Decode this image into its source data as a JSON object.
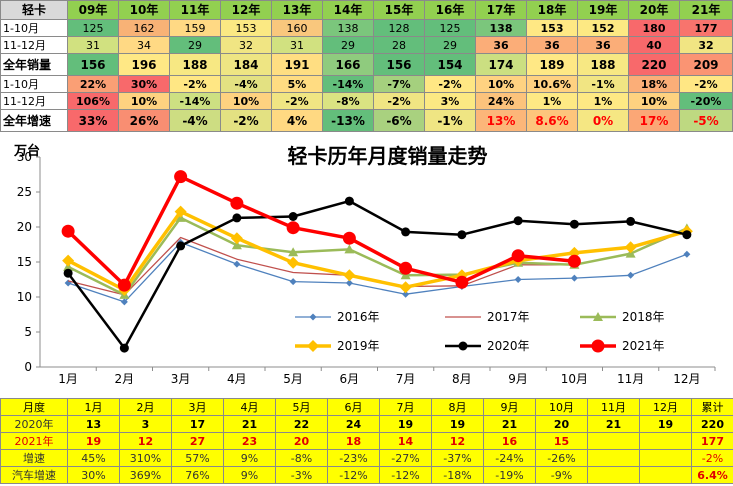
{
  "summary_table": {
    "header": [
      "轻卡",
      "09年",
      "10年",
      "11年",
      "12年",
      "13年",
      "14年",
      "15年",
      "16年",
      "17年",
      "18年",
      "19年",
      "20年",
      "21年"
    ],
    "header_colors": [
      "#d9d9d9",
      "#92d050",
      "#92d050",
      "#92d050",
      "#92d050",
      "#92d050",
      "#92d050",
      "#92d050",
      "#92d050",
      "#92d050",
      "#92d050",
      "#92d050",
      "#92d050",
      "#92d050"
    ],
    "rows": [
      {
        "label": "1-10月",
        "cells": [
          "125",
          "162",
          "159",
          "153",
          "160",
          "138",
          "128",
          "125",
          "138",
          "153",
          "152",
          "180",
          "177"
        ],
        "colors": [
          "#63be7b",
          "#f8b276",
          "#ffd984",
          "#fbe983",
          "#f9c77d",
          "#7bc67c",
          "#63be7b",
          "#63be7b",
          "#7bc67c",
          "#ffe884",
          "#fde983",
          "#f8696b",
          "#f8746d"
        ],
        "bold": [
          false,
          false,
          false,
          false,
          false,
          false,
          false,
          false,
          true,
          true,
          true,
          true,
          true
        ]
      },
      {
        "label": "11-12月",
        "cells": [
          "31",
          "34",
          "29",
          "32",
          "31",
          "29",
          "28",
          "29",
          "36",
          "36",
          "36",
          "40",
          "32"
        ],
        "colors": [
          "#d1e180",
          "#ffd984",
          "#63be7b",
          "#f0e583",
          "#d1e180",
          "#63be7b",
          "#63be7b",
          "#63be7b",
          "#fbad78",
          "#fbad78",
          "#fbad78",
          "#f8696b",
          "#f1e583"
        ],
        "bold": [
          false,
          false,
          false,
          false,
          false,
          false,
          false,
          false,
          true,
          true,
          true,
          true,
          true
        ]
      },
      {
        "label": "全年销量",
        "cells": [
          "156",
          "196",
          "188",
          "184",
          "191",
          "166",
          "156",
          "154",
          "174",
          "189",
          "188",
          "220",
          "209"
        ],
        "colors": [
          "#63be7b",
          "#ffe885",
          "#f7e883",
          "#eee583",
          "#ffde82",
          "#8fcb7e",
          "#63be7b",
          "#63be7b",
          "#cbdf81",
          "#ffe885",
          "#f7e883",
          "#f8696b",
          "#fa9473"
        ],
        "bold": [
          true,
          true,
          true,
          true,
          true,
          true,
          true,
          true,
          true,
          true,
          true,
          true,
          true
        ]
      },
      {
        "label": "1-10月",
        "cells": [
          "22%",
          "30%",
          "-2%",
          "-4%",
          "5%",
          "-14%",
          "-7%",
          "-2%",
          "10%",
          "10.6%",
          "-1%",
          "18%",
          "-2%"
        ],
        "colors": [
          "#fa9f75",
          "#f8696b",
          "#ffe784",
          "#e3e182",
          "#ffdc82",
          "#63be7b",
          "#a5d07e",
          "#ffe784",
          "#ffd281",
          "#ffd181",
          "#f1e583",
          "#fbae78",
          "#ffe784"
        ],
        "bold": [
          true,
          true,
          true,
          true,
          true,
          true,
          true,
          true,
          true,
          true,
          true,
          true,
          true
        ]
      },
      {
        "label": "11-12月",
        "cells": [
          "106%",
          "10%",
          "-14%",
          "10%",
          "-2%",
          "-8%",
          "-2%",
          "3%",
          "24%",
          "1%",
          "1%",
          "10%",
          "-20%"
        ],
        "colors": [
          "#f8696b",
          "#fed280",
          "#cde082",
          "#fed280",
          "#f0e583",
          "#dae382",
          "#f0e583",
          "#fce983",
          "#fcc37c",
          "#fee984",
          "#fee984",
          "#fed280",
          "#63be7b"
        ],
        "bold": [
          true,
          true,
          true,
          true,
          true,
          true,
          true,
          true,
          true,
          true,
          true,
          true,
          true
        ]
      },
      {
        "label": "全年增速",
        "cells": [
          "33%",
          "26%",
          "-4%",
          "-2%",
          "4%",
          "-13%",
          "-6%",
          "-1%",
          "13%",
          "8.6%",
          "0%",
          "17%",
          "-5%"
        ],
        "colors": [
          "#f8696b",
          "#f98e72",
          "#cddd82",
          "#e3e182",
          "#ffd982",
          "#63be7b",
          "#a9d17f",
          "#efe583",
          "#fcb679",
          "#fdc57c",
          "#f5e783",
          "#fba776",
          "#bed981"
        ],
        "bold": [
          true,
          true,
          true,
          true,
          true,
          true,
          true,
          true,
          true,
          true,
          true,
          true,
          true
        ],
        "red_from": 8
      }
    ]
  },
  "chart_data": {
    "type": "line",
    "title": "轻卡历年月度销量走势",
    "ylabel": "万台",
    "ylim": [
      0,
      30
    ],
    "yticks": [
      "0",
      "5",
      "10",
      "15",
      "20",
      "25",
      "30"
    ],
    "categories": [
      "1月",
      "2月",
      "3月",
      "4月",
      "5月",
      "6月",
      "7月",
      "8月",
      "9月",
      "10月",
      "11月",
      "12月"
    ],
    "grid": false,
    "legend_placement": "bottom-center",
    "series": [
      {
        "name": "2016年",
        "color": "#4f81bd",
        "marker": "diamond",
        "width": 1.3,
        "values": [
          12.0,
          9.3,
          17.8,
          14.7,
          12.2,
          12.0,
          10.4,
          11.5,
          12.5,
          12.7,
          13.1,
          16.1
        ]
      },
      {
        "name": "2017年",
        "color": "#c0504d",
        "marker": "none",
        "width": 1.3,
        "values": [
          12.3,
          10.3,
          18.5,
          15.4,
          13.5,
          13.1,
          11.5,
          11.6,
          14.6,
          14.6,
          16.2,
          19.6
        ]
      },
      {
        "name": "2018年",
        "color": "#9bbb59",
        "marker": "triangle",
        "width": 2.5,
        "values": [
          14.3,
          10.3,
          21.3,
          17.4,
          16.4,
          16.8,
          13.1,
          13.2,
          14.9,
          14.6,
          16.2,
          19.8
        ]
      },
      {
        "name": "2019年",
        "color": "#ffc000",
        "marker": "diamond",
        "width": 3.5,
        "values": [
          15.2,
          11.0,
          22.2,
          18.4,
          14.9,
          13.1,
          11.4,
          13.1,
          15.2,
          16.3,
          17.1,
          19.4
        ]
      },
      {
        "name": "2020年",
        "color": "#000000",
        "marker": "circle",
        "width": 2.5,
        "values": [
          13.4,
          2.7,
          17.3,
          21.3,
          21.5,
          23.7,
          19.3,
          18.9,
          20.9,
          20.4,
          20.8,
          18.9
        ]
      },
      {
        "name": "2021年",
        "color": "#ff0000",
        "marker": "circle",
        "width": 3.5,
        "values": [
          19.4,
          11.7,
          27.2,
          23.4,
          19.9,
          18.4,
          14.1,
          12.1,
          15.9,
          15.1,
          null,
          null
        ]
      }
    ]
  },
  "bottom_table": {
    "header": [
      "月度",
      "1月",
      "2月",
      "3月",
      "4月",
      "5月",
      "6月",
      "7月",
      "8月",
      "9月",
      "10月",
      "11月",
      "12月",
      "累计"
    ],
    "rows": [
      {
        "label": "2020年",
        "cells": [
          "13",
          "3",
          "17",
          "21",
          "22",
          "24",
          "19",
          "19",
          "21",
          "20",
          "21",
          "19",
          "220"
        ],
        "bg": "#ffff00",
        "bold": true,
        "color": "#000000"
      },
      {
        "label": "2021年",
        "cells": [
          "19",
          "12",
          "27",
          "23",
          "20",
          "18",
          "14",
          "12",
          "16",
          "15",
          "",
          "",
          "177"
        ],
        "bg": "#ffff00",
        "bold": true,
        "color": "#e00000"
      },
      {
        "label": "增速",
        "cells": [
          "45%",
          "310%",
          "57%",
          "9%",
          "-8%",
          "-23%",
          "-27%",
          "-37%",
          "-24%",
          "-26%",
          "",
          "",
          "-2%"
        ],
        "bg": "#ffff00",
        "bold": false,
        "color": "#333333"
      },
      {
        "label": "汽车增速",
        "cells": [
          "30%",
          "369%",
          "76%",
          "9%",
          "-3%",
          "-12%",
          "-12%",
          "-18%",
          "-19%",
          "-9%",
          "",
          "",
          "6.4%"
        ],
        "bg": "#ffff00",
        "bold": false,
        "color": "#333333"
      }
    ],
    "header_bg": "#ffff00",
    "last_cell_red_rows": [
      1,
      2,
      3
    ]
  }
}
